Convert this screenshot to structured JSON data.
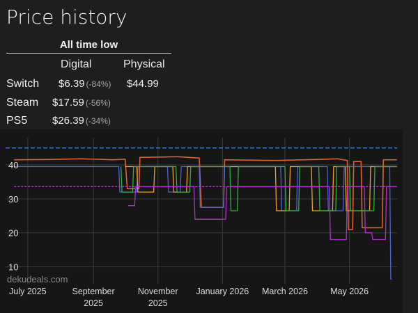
{
  "page": {
    "title": "Price history"
  },
  "all_time_low": {
    "heading": "All time low",
    "columns": [
      "Digital",
      "Physical"
    ],
    "rows": [
      {
        "platform": "Switch",
        "digital": "$6.39",
        "digital_pct": "(-84%)",
        "physical": "$44.99"
      },
      {
        "platform": "Steam",
        "digital": "$17.59",
        "digital_pct": "(-56%)",
        "physical": ""
      },
      {
        "platform": "PS5",
        "digital": "$26.39",
        "digital_pct": "(-34%)",
        "physical": ""
      }
    ]
  },
  "watermark": "dekudeals.com",
  "chart_data": {
    "type": "line",
    "x_tick_labels": [
      "July 2025",
      "September 2025",
      "November 2025",
      "January 2026",
      "March 2026",
      "May 2026"
    ],
    "y_ticks": [
      10,
      20,
      30,
      40
    ],
    "ylim": [
      5,
      48
    ],
    "xlim": [
      "2025-06-10",
      "2026-06-15"
    ],
    "grid": true,
    "colors": {
      "physical_list": "#4a7fd8",
      "orange_line": "#e0602a",
      "purple_dashed": "#b040c8",
      "blue": "#4d62d8",
      "yellow": "#f0a020",
      "green": "#30b040",
      "purple": "#b030c8"
    },
    "series": [
      {
        "color": "#4a7fd8",
        "style": "dashed",
        "points": [
          [
            "2025-06-10",
            45.0
          ],
          [
            "2026-06-15",
            45.0
          ]
        ]
      },
      {
        "color": "#e0602a",
        "points": [
          [
            "2025-06-18",
            41.5
          ],
          [
            "2025-07-20",
            41.6
          ],
          [
            "2025-08-20",
            41.8
          ],
          [
            "2025-09-20",
            41.5
          ],
          [
            "2025-10-01",
            41.7
          ],
          [
            "2025-10-03",
            33.0
          ],
          [
            "2025-10-14",
            33.0
          ],
          [
            "2025-10-15",
            42.2
          ],
          [
            "2025-11-20",
            42.4
          ],
          [
            "2025-12-10",
            42.0
          ],
          [
            "2025-12-12",
            27.5
          ],
          [
            "2026-01-02",
            27.5
          ],
          [
            "2026-01-03",
            41.5
          ],
          [
            "2026-02-20",
            41.3
          ],
          [
            "2026-03-30",
            41.6
          ],
          [
            "2026-04-20",
            41.8
          ],
          [
            "2026-04-29",
            41.3
          ],
          [
            "2026-04-30",
            21.0
          ],
          [
            "2026-05-04",
            21.0
          ],
          [
            "2026-05-05",
            41.0
          ],
          [
            "2026-05-12",
            41.0
          ],
          [
            "2026-05-13",
            21.5
          ],
          [
            "2026-06-01",
            21.5
          ],
          [
            "2026-06-02",
            41.5
          ],
          [
            "2026-06-15",
            41.5
          ]
        ]
      },
      {
        "color": "#b040c8",
        "style": "dashed",
        "points": [
          [
            "2025-06-18",
            33.6
          ],
          [
            "2026-06-15",
            33.6
          ]
        ]
      },
      {
        "color": "#4d62d8",
        "points": [
          [
            "2025-06-18",
            39.5
          ],
          [
            "2025-09-25",
            39.5
          ],
          [
            "2025-09-26",
            32.0
          ],
          [
            "2025-10-12",
            32.0
          ],
          [
            "2025-10-13",
            39.5
          ],
          [
            "2025-11-10",
            39.5
          ],
          [
            "2025-11-11",
            32.0
          ],
          [
            "2025-11-22",
            32.0
          ],
          [
            "2025-11-23",
            39.5
          ],
          [
            "2025-12-10",
            39.5
          ],
          [
            "2025-12-11",
            27.5
          ],
          [
            "2026-01-02",
            27.5
          ],
          [
            "2026-01-03",
            39.5
          ],
          [
            "2026-02-25",
            39.5
          ],
          [
            "2026-02-26",
            26.5
          ],
          [
            "2026-03-12",
            26.5
          ],
          [
            "2026-03-13",
            39.5
          ],
          [
            "2026-04-10",
            39.5
          ],
          [
            "2026-04-11",
            26.5
          ],
          [
            "2026-04-25",
            26.5
          ],
          [
            "2026-04-26",
            39.5
          ],
          [
            "2026-06-08",
            39.5
          ],
          [
            "2026-06-09",
            6.4
          ],
          [
            "2026-06-10",
            6.4
          ]
        ]
      },
      {
        "color": "#f0a020",
        "points": [
          [
            "2025-10-01",
            39.5
          ],
          [
            "2025-10-12",
            39.5
          ],
          [
            "2025-10-13",
            32.0
          ],
          [
            "2025-10-28",
            32.0
          ],
          [
            "2025-10-29",
            39.5
          ],
          [
            "2025-11-15",
            39.5
          ],
          [
            "2025-11-16",
            32.0
          ],
          [
            "2025-11-28",
            32.0
          ],
          [
            "2025-11-29",
            39.5
          ],
          [
            "2026-02-20",
            39.5
          ],
          [
            "2026-02-21",
            26.5
          ],
          [
            "2026-03-05",
            26.5
          ],
          [
            "2026-03-06",
            39.5
          ],
          [
            "2026-03-26",
            39.5
          ],
          [
            "2026-03-27",
            26.5
          ],
          [
            "2026-04-15",
            26.5
          ],
          [
            "2026-04-16",
            39.5
          ],
          [
            "2026-04-27",
            39.5
          ],
          [
            "2026-04-28",
            26.5
          ],
          [
            "2026-05-20",
            26.5
          ],
          [
            "2026-05-21",
            39.5
          ],
          [
            "2026-06-15",
            39.5
          ]
        ]
      },
      {
        "color": "#30b040",
        "points": [
          [
            "2025-09-27",
            39.5
          ],
          [
            "2025-09-28",
            32.0
          ],
          [
            "2025-10-08",
            32.0
          ],
          [
            "2025-10-09",
            39.5
          ],
          [
            "2025-11-18",
            39.5
          ],
          [
            "2025-11-19",
            32.0
          ],
          [
            "2025-12-01",
            32.0
          ],
          [
            "2025-12-02",
            39.5
          ],
          [
            "2026-01-08",
            39.5
          ],
          [
            "2026-01-09",
            26.5
          ],
          [
            "2026-01-15",
            26.5
          ],
          [
            "2026-01-16",
            39.5
          ],
          [
            "2026-03-01",
            39.5
          ],
          [
            "2026-03-02",
            26.5
          ],
          [
            "2026-03-14",
            26.5
          ],
          [
            "2026-03-15",
            39.5
          ],
          [
            "2026-04-02",
            39.5
          ],
          [
            "2026-04-03",
            26.5
          ],
          [
            "2026-04-18",
            26.5
          ],
          [
            "2026-04-19",
            39.5
          ],
          [
            "2026-05-01",
            39.5
          ],
          [
            "2026-05-02",
            26.5
          ],
          [
            "2026-05-24",
            26.5
          ],
          [
            "2026-05-25",
            39.5
          ],
          [
            "2026-06-15",
            39.5
          ]
        ]
      },
      {
        "color": "#b030c8",
        "points": [
          [
            "2025-10-04",
            28.0
          ],
          [
            "2025-10-10",
            28.0
          ],
          [
            "2025-10-11",
            33.6
          ],
          [
            "2025-12-05",
            33.6
          ],
          [
            "2025-12-06",
            24.0
          ],
          [
            "2026-01-04",
            24.0
          ],
          [
            "2026-01-05",
            33.6
          ],
          [
            "2026-04-12",
            33.6
          ],
          [
            "2026-04-13",
            18.0
          ],
          [
            "2026-04-28",
            18.0
          ],
          [
            "2026-04-29",
            33.6
          ],
          [
            "2026-05-15",
            33.6
          ],
          [
            "2026-05-16",
            20.0
          ],
          [
            "2026-05-22",
            20.0
          ],
          [
            "2026-05-23",
            18.0
          ],
          [
            "2026-06-04",
            18.0
          ],
          [
            "2026-06-05",
            33.6
          ],
          [
            "2026-06-15",
            33.6
          ]
        ]
      }
    ]
  }
}
